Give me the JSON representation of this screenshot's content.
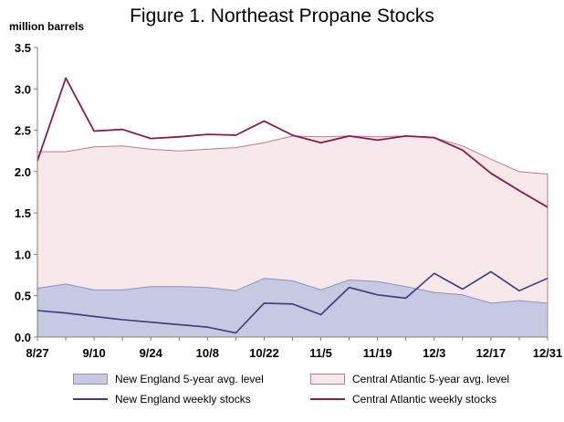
{
  "chart_data": {
    "type": "area",
    "title": "Figure 1. Northeast Propane Stocks",
    "ylabel": "million barrels",
    "xlabel": "",
    "ylim": [
      0,
      3.5
    ],
    "yticks": [
      "0.0",
      "0.5",
      "1.0",
      "1.5",
      "2.0",
      "2.5",
      "3.0",
      "3.5"
    ],
    "x_tick_labels": [
      "8/27",
      "9/10",
      "9/24",
      "10/8",
      "10/22",
      "11/5",
      "11/19",
      "12/3",
      "12/17",
      "12/31"
    ],
    "x": [
      "8/27",
      "9/3",
      "9/10",
      "9/17",
      "9/24",
      "10/1",
      "10/8",
      "10/15",
      "10/22",
      "10/29",
      "11/5",
      "11/12",
      "11/19",
      "11/26",
      "12/3",
      "12/10",
      "12/17",
      "12/24",
      "12/31"
    ],
    "series": [
      {
        "name": "New England 5-year avg. level",
        "kind": "area",
        "values": [
          0.59,
          0.64,
          0.57,
          0.57,
          0.61,
          0.61,
          0.6,
          0.56,
          0.71,
          0.68,
          0.57,
          0.69,
          0.67,
          0.61,
          0.54,
          0.51,
          0.41,
          0.44,
          0.41
        ]
      },
      {
        "name": "Central Atlantic 5-year avg. level",
        "kind": "area",
        "values": [
          2.24,
          2.24,
          2.3,
          2.31,
          2.27,
          2.25,
          2.27,
          2.29,
          2.35,
          2.43,
          2.42,
          2.43,
          2.42,
          2.43,
          2.41,
          2.31,
          2.15,
          2.0,
          1.97
        ]
      },
      {
        "name": "New England weekly stocks",
        "kind": "line",
        "values": [
          0.32,
          0.29,
          0.25,
          0.21,
          0.18,
          0.15,
          0.12,
          0.05,
          0.41,
          0.4,
          0.27,
          0.6,
          0.51,
          0.47,
          0.77,
          0.58,
          0.79,
          0.56,
          0.71
        ]
      },
      {
        "name": "Central Atlantic weekly stocks",
        "kind": "line",
        "values": [
          2.13,
          3.13,
          2.49,
          2.51,
          2.4,
          2.42,
          2.45,
          2.44,
          2.61,
          2.44,
          2.35,
          2.43,
          2.38,
          2.43,
          2.41,
          2.26,
          1.98,
          1.77,
          1.57
        ]
      }
    ],
    "colors": {
      "ne_area_fill": "#c6c9e1",
      "ne_area_edge": "#8c92c4",
      "ca_area_fill": "#f7e8ea",
      "ca_area_edge": "#b77e8e",
      "ne_line": "#3b3b7e",
      "ca_line": "#8a1c4a",
      "grid": "#a6a6a6"
    },
    "grid": false,
    "legend_position": "bottom"
  }
}
